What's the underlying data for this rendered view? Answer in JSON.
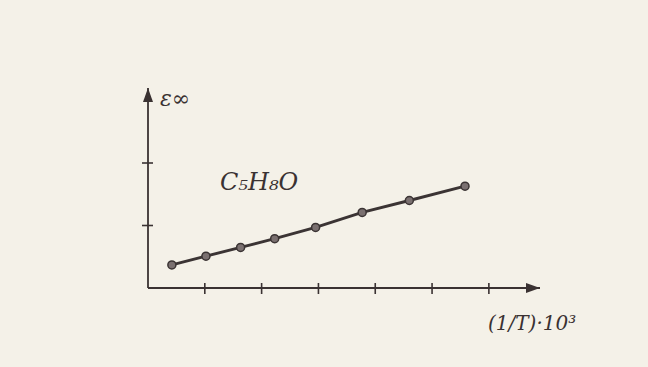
{
  "chart_data": {
    "type": "line",
    "title": "C₅H₈O",
    "x_label": "(1/T)·10³",
    "y_label": "ε∞",
    "x": [
      0.42,
      1.02,
      1.63,
      2.23,
      2.95,
      3.77,
      4.6,
      5.58
    ],
    "values": [
      0.37,
      0.51,
      0.65,
      0.79,
      0.97,
      1.21,
      1.4,
      1.63
    ],
    "color": "#3b3434",
    "marker": "circle",
    "line_style": "solid",
    "xlim": [
      0,
      6.9
    ],
    "ylim": [
      0,
      3.2
    ],
    "xticks": [
      1,
      2,
      3,
      4,
      5,
      6
    ],
    "yticks": [
      1,
      2
    ],
    "grid": false,
    "tick_labels": false
  }
}
